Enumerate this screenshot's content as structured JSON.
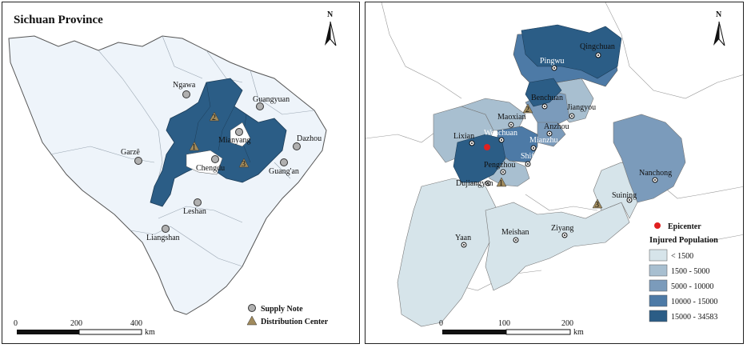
{
  "left_map": {
    "title": "Sichuan Province",
    "north": "N",
    "cities": [
      {
        "name": "Ngawa"
      },
      {
        "name": "Guangyuan"
      },
      {
        "name": "Mianyang"
      },
      {
        "name": "Dazhou"
      },
      {
        "name": "Garzê"
      },
      {
        "name": "Chengdu"
      },
      {
        "name": "Guang'an"
      },
      {
        "name": "Leshan"
      },
      {
        "name": "Liangshan"
      }
    ],
    "centers": [
      "1",
      "2",
      "3"
    ],
    "legend": {
      "supply": "Supply Note",
      "distribution": "Distribution Center"
    },
    "scale": {
      "ticks": [
        "0",
        "200",
        "400"
      ],
      "unit": "km"
    }
  },
  "right_map": {
    "north": "N",
    "cities": [
      {
        "name": "Qingchuan"
      },
      {
        "name": "Pingwu"
      },
      {
        "name": "Benchuan"
      },
      {
        "name": "Jiangyou"
      },
      {
        "name": "Maoxian"
      },
      {
        "name": "Anzhou"
      },
      {
        "name": "Lixian"
      },
      {
        "name": "Wenchuan"
      },
      {
        "name": "Mianzhu"
      },
      {
        "name": "Shifang"
      },
      {
        "name": "Pengzhou"
      },
      {
        "name": "Dujiangyan"
      },
      {
        "name": "Nanchong"
      },
      {
        "name": "Suining"
      },
      {
        "name": "Yaan"
      },
      {
        "name": "Meishan"
      },
      {
        "name": "Ziyang"
      }
    ],
    "centers": [
      "2",
      "1",
      "3"
    ],
    "legend": {
      "epicenter": "Epicenter",
      "title": "Injured Population",
      "classes": [
        {
          "label": "< 1500",
          "color": "#d6e4ea"
        },
        {
          "label": "1500 - 5000",
          "color": "#a8bfd0"
        },
        {
          "label": "5000 - 10000",
          "color": "#7b9bbb"
        },
        {
          "label": "10000 - 15000",
          "color": "#4d7aa6"
        },
        {
          "label": "15000 - 34583",
          "color": "#2b5d86"
        }
      ]
    },
    "scale": {
      "ticks": [
        "0",
        "100",
        "200"
      ],
      "unit": "km"
    }
  },
  "colors": {
    "province_fill": "#eef4fa",
    "affected_fill": "#2b5d86",
    "marker_gray": "#b0b0b0",
    "triangle": "#a08a5c",
    "epicenter": "#e02020"
  }
}
